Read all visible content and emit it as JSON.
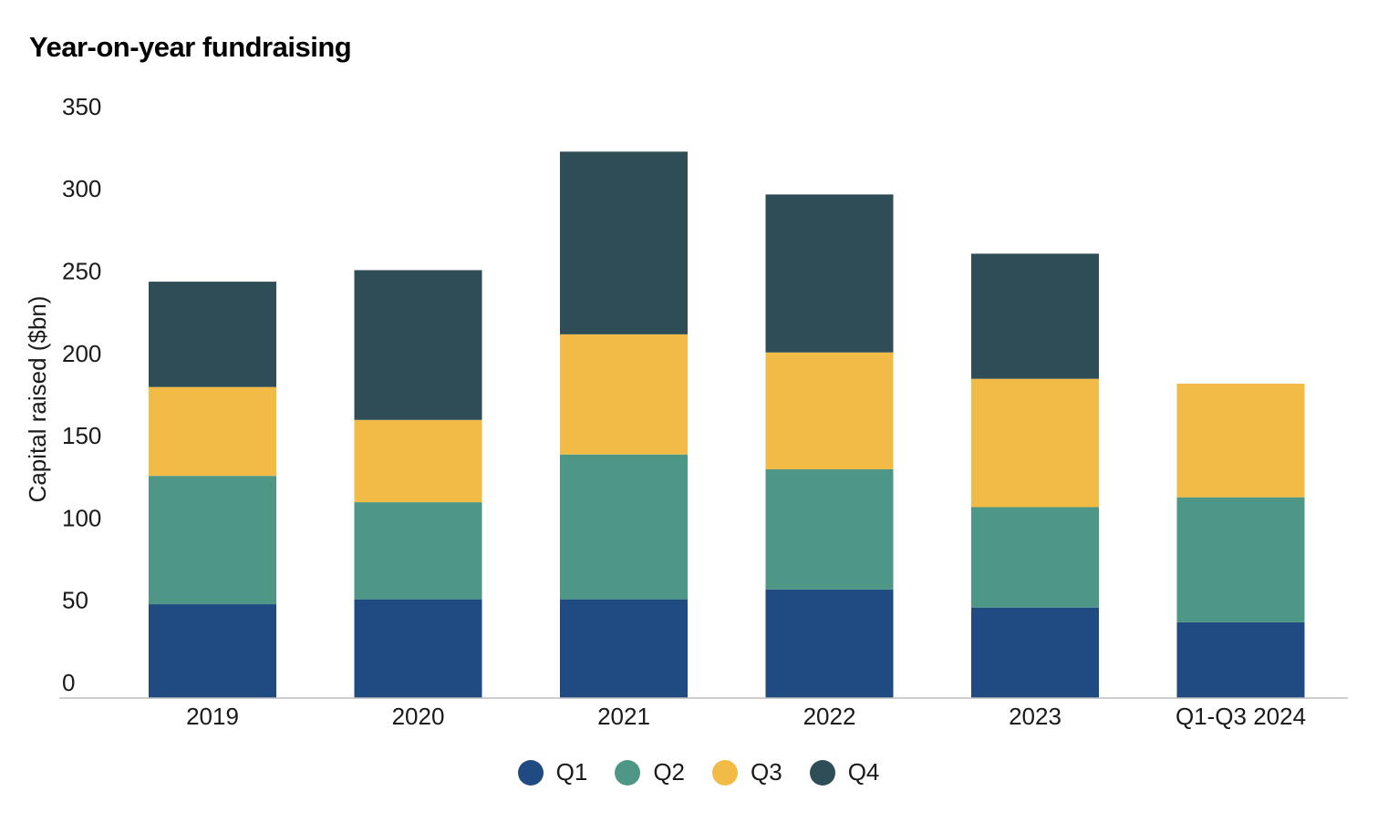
{
  "title": "Year-on-year fundraising",
  "colors": {
    "Q1": "#1f4a82",
    "Q2": "#4e9787",
    "Q3": "#f2bb46",
    "Q4": "#2f4d57",
    "axis": "#bdbdbd"
  },
  "chart_data": {
    "type": "bar",
    "stacked": true,
    "title": "Year-on-year fundraising",
    "xlabel": "",
    "ylabel": "Capital raised ($bn)",
    "ylim": [
      0,
      350
    ],
    "yticks": [
      "0",
      "50",
      "100",
      "150",
      "200",
      "250",
      "300",
      "350"
    ],
    "categories": [
      "2019",
      "2020",
      "2021",
      "2022",
      "2023",
      "Q1-Q3 2024"
    ],
    "series": [
      {
        "name": "Q1",
        "values": [
          57,
          60,
          60,
          66,
          55,
          46
        ]
      },
      {
        "name": "Q2",
        "values": [
          78,
          59,
          88,
          73,
          61,
          76
        ]
      },
      {
        "name": "Q3",
        "values": [
          54,
          50,
          73,
          71,
          78,
          69
        ]
      },
      {
        "name": "Q4",
        "values": [
          64,
          91,
          111,
          96,
          76,
          null
        ]
      }
    ],
    "legend_position": "bottom-center",
    "grid": false
  },
  "legend": {
    "items": [
      {
        "label": "Q1",
        "color_key": "Q1"
      },
      {
        "label": "Q2",
        "color_key": "Q2"
      },
      {
        "label": "Q3",
        "color_key": "Q3"
      },
      {
        "label": "Q4",
        "color_key": "Q4"
      }
    ]
  }
}
